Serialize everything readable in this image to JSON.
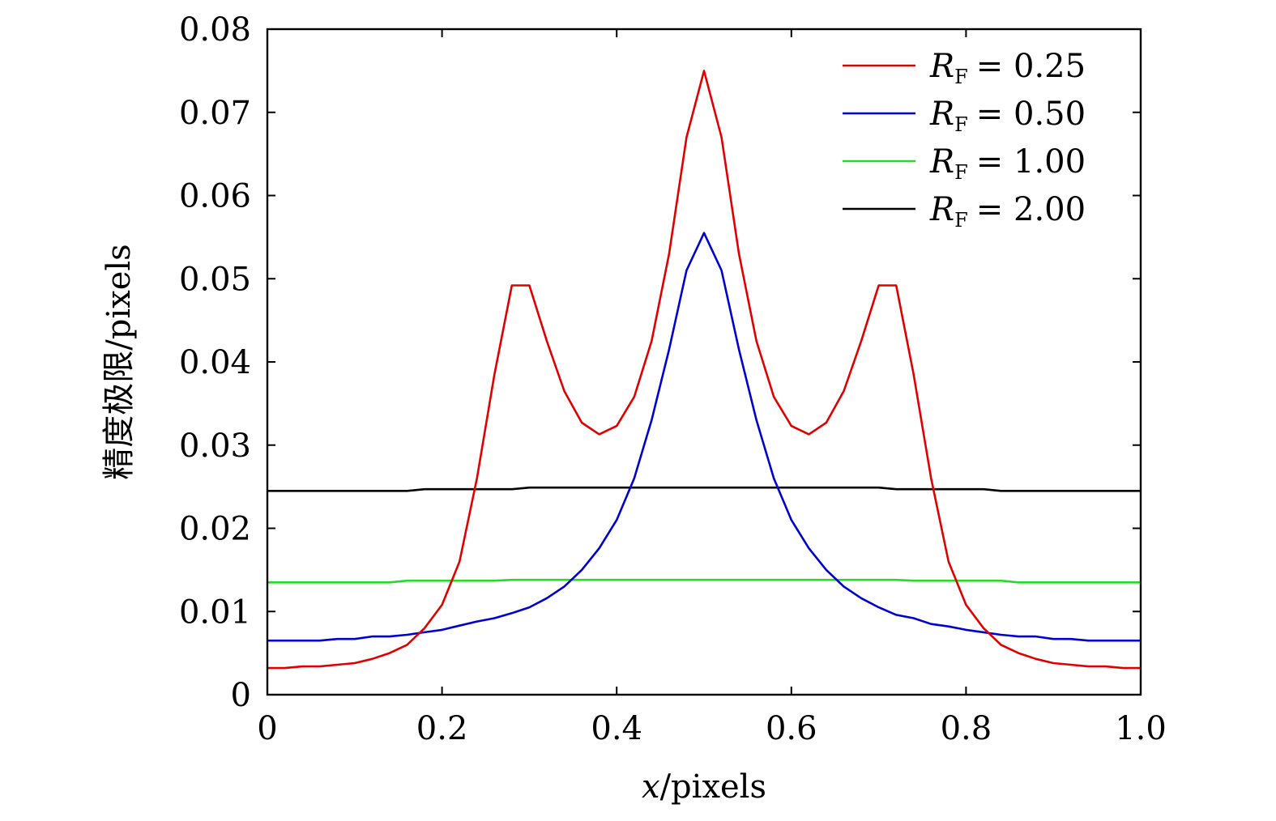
{
  "chart_data": {
    "type": "line",
    "title": "",
    "xlabel": {
      "var": "x",
      "unit": "/pixels"
    },
    "ylabel": "精度极限/pixels",
    "xlim": [
      0,
      1.0
    ],
    "ylim": [
      0,
      0.08
    ],
    "xticks": [
      "0",
      "0.2",
      "0.4",
      "0.6",
      "0.8",
      "1.0"
    ],
    "yticks": [
      "0",
      "0.01",
      "0.02",
      "0.03",
      "0.04",
      "0.05",
      "0.06",
      "0.07",
      "0.08"
    ],
    "grid": false,
    "legend_position": "top-right",
    "x": [
      0,
      0.02,
      0.04,
      0.06,
      0.08,
      0.1,
      0.12,
      0.14,
      0.16,
      0.18,
      0.2,
      0.22,
      0.24,
      0.26,
      0.28,
      0.3,
      0.32,
      0.34,
      0.36,
      0.38,
      0.4,
      0.42,
      0.44,
      0.46,
      0.48,
      0.5,
      0.52,
      0.54,
      0.56,
      0.58,
      0.6,
      0.62,
      0.64,
      0.66,
      0.68,
      0.7,
      0.72,
      0.74,
      0.76,
      0.78,
      0.8,
      0.82,
      0.84,
      0.86,
      0.88,
      0.9,
      0.92,
      0.94,
      0.96,
      0.98,
      1.0
    ],
    "series": [
      {
        "name": "R_F = 0.25",
        "legend_main": "R",
        "legend_sub": "F",
        "legend_value": "= 0.25",
        "color": "#e00000",
        "values": [
          0.0032,
          0.0032,
          0.0034,
          0.0034,
          0.0036,
          0.0038,
          0.0043,
          0.005,
          0.006,
          0.008,
          0.0108,
          0.016,
          0.026,
          0.0385,
          0.0492,
          0.0492,
          0.0425,
          0.0365,
          0.0327,
          0.0313,
          0.0323,
          0.0358,
          0.0425,
          0.053,
          0.067,
          0.075,
          0.067,
          0.053,
          0.0425,
          0.0358,
          0.0323,
          0.0313,
          0.0327,
          0.0365,
          0.0425,
          0.0492,
          0.0492,
          0.0385,
          0.026,
          0.016,
          0.0108,
          0.008,
          0.006,
          0.005,
          0.0043,
          0.0038,
          0.0036,
          0.0034,
          0.0034,
          0.0032,
          0.0032
        ]
      },
      {
        "name": "R_F = 0.50",
        "legend_main": "R",
        "legend_sub": "F",
        "legend_value": "= 0.50",
        "color": "#0000d0",
        "values": [
          0.0065,
          0.0065,
          0.0065,
          0.0065,
          0.0067,
          0.0067,
          0.007,
          0.007,
          0.0072,
          0.0075,
          0.0078,
          0.0083,
          0.0088,
          0.0092,
          0.0098,
          0.0105,
          0.0116,
          0.013,
          0.015,
          0.0176,
          0.021,
          0.026,
          0.033,
          0.0415,
          0.051,
          0.0555,
          0.051,
          0.0415,
          0.033,
          0.026,
          0.021,
          0.0176,
          0.015,
          0.013,
          0.0116,
          0.0105,
          0.0096,
          0.0092,
          0.0085,
          0.0082,
          0.0078,
          0.0075,
          0.0072,
          0.007,
          0.007,
          0.0067,
          0.0067,
          0.0065,
          0.0065,
          0.0065,
          0.0065
        ]
      },
      {
        "name": "R_F = 1.00",
        "legend_main": "R",
        "legend_sub": "F",
        "legend_value": "= 1.00",
        "color": "#22dd22",
        "values": [
          0.0135,
          0.0135,
          0.0135,
          0.0135,
          0.0135,
          0.0135,
          0.0135,
          0.0135,
          0.0137,
          0.0137,
          0.0137,
          0.0137,
          0.0137,
          0.0137,
          0.0138,
          0.0138,
          0.0138,
          0.0138,
          0.0138,
          0.0138,
          0.0138,
          0.0138,
          0.0138,
          0.0138,
          0.0138,
          0.0138,
          0.0138,
          0.0138,
          0.0138,
          0.0138,
          0.0138,
          0.0138,
          0.0138,
          0.0138,
          0.0138,
          0.0138,
          0.0138,
          0.0137,
          0.0137,
          0.0137,
          0.0137,
          0.0137,
          0.0137,
          0.0135,
          0.0135,
          0.0135,
          0.0135,
          0.0135,
          0.0135,
          0.0135,
          0.0135
        ]
      },
      {
        "name": "R_F = 2.00",
        "legend_main": "R",
        "legend_sub": "F",
        "legend_value": "= 2.00",
        "color": "#000000",
        "values": [
          0.0245,
          0.0245,
          0.0245,
          0.0245,
          0.0245,
          0.0245,
          0.0245,
          0.0245,
          0.0245,
          0.0247,
          0.0247,
          0.0247,
          0.0247,
          0.0247,
          0.0247,
          0.0249,
          0.0249,
          0.0249,
          0.0249,
          0.0249,
          0.0249,
          0.0249,
          0.0249,
          0.0249,
          0.0249,
          0.0249,
          0.0249,
          0.0249,
          0.0249,
          0.0249,
          0.0249,
          0.0249,
          0.0249,
          0.0249,
          0.0249,
          0.0249,
          0.0247,
          0.0247,
          0.0247,
          0.0247,
          0.0247,
          0.0247,
          0.0245,
          0.0245,
          0.0245,
          0.0245,
          0.0245,
          0.0245,
          0.0245,
          0.0245,
          0.0245
        ]
      }
    ]
  }
}
